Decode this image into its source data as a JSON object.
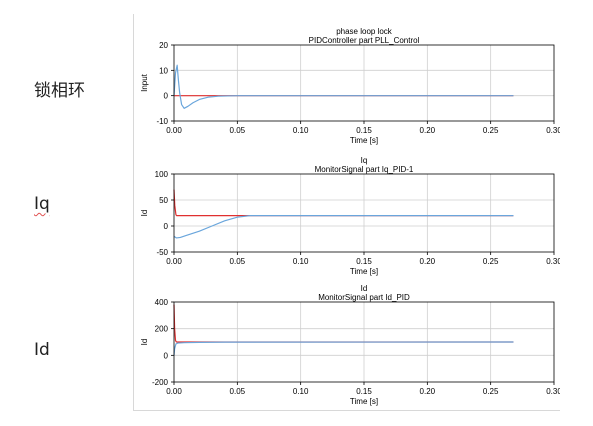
{
  "side_labels": {
    "top": "锁相环",
    "middle": "Iq",
    "bottom": "Id"
  },
  "chart_data": [
    {
      "type": "line",
      "title": "phase loop lock",
      "subtitle": "PIDController part PLL_Control",
      "xlabel": "Time [s]",
      "ylabel": "Input",
      "xlim": [
        0,
        0.3
      ],
      "ylim": [
        -10,
        20
      ],
      "xticks": [
        "0.00",
        "0.05",
        "0.10",
        "0.15",
        "0.20",
        "0.25",
        "0.30"
      ],
      "yticks": [
        "20",
        "10",
        "0",
        "-10"
      ],
      "grid": true,
      "series": [
        {
          "color": "#e03030",
          "x": [
            0,
            0.268
          ],
          "y": [
            0,
            0
          ]
        },
        {
          "color": "#6aa6dc",
          "x": [
            0,
            0.0012,
            0.0025,
            0.0035,
            0.0045,
            0.006,
            0.008,
            0.011,
            0.015,
            0.02,
            0.027,
            0.035,
            0.05,
            0.268
          ],
          "y": [
            0,
            9,
            12,
            6,
            1,
            -3.5,
            -5,
            -4.2,
            -2.8,
            -1.5,
            -0.6,
            -0.2,
            0,
            0
          ]
        }
      ]
    },
    {
      "type": "line",
      "title": "Iq",
      "subtitle": "MonitorSignal part Iq_PID-1",
      "xlabel": "Time [s]",
      "ylabel": "Id",
      "xlim": [
        0,
        0.3
      ],
      "ylim": [
        -50,
        100
      ],
      "xticks": [
        "0.00",
        "0.05",
        "0.10",
        "0.15",
        "0.20",
        "0.25",
        "0.30"
      ],
      "yticks": [
        "100",
        "50",
        "0",
        "-50"
      ],
      "grid": true,
      "series": [
        {
          "color": "#e03030",
          "x": [
            0,
            0.0006,
            0.0015,
            0.002,
            0.268
          ],
          "y": [
            70,
            40,
            22,
            20,
            20
          ]
        },
        {
          "color": "#6aa6dc",
          "x": [
            0,
            0.002,
            0.005,
            0.01,
            0.02,
            0.03,
            0.04,
            0.05,
            0.06,
            0.268
          ],
          "y": [
            -20,
            -23,
            -22,
            -18,
            -10,
            0,
            10,
            17,
            20,
            20
          ]
        }
      ]
    },
    {
      "type": "line",
      "title": "Id",
      "subtitle": "MonitorSignal part Id_PID",
      "xlabel": "Time [s]",
      "ylabel": "Id",
      "xlim": [
        0,
        0.3
      ],
      "ylim": [
        -200,
        400
      ],
      "xticks": [
        "0.00",
        "0.05",
        "0.10",
        "0.15",
        "0.20",
        "0.25",
        "0.30"
      ],
      "yticks": [
        "400",
        "200",
        "0",
        "-200"
      ],
      "grid": true,
      "series": [
        {
          "color": "#e03030",
          "x": [
            0,
            0.0005,
            0.0012,
            0.002,
            0.268
          ],
          "y": [
            380,
            200,
            110,
            100,
            100
          ]
        },
        {
          "color": "#6aa6dc",
          "x": [
            0,
            0.0005,
            0.0015,
            0.003,
            0.008,
            0.02,
            0.04,
            0.268
          ],
          "y": [
            0,
            50,
            85,
            92,
            95,
            97,
            99,
            100
          ]
        }
      ]
    }
  ]
}
